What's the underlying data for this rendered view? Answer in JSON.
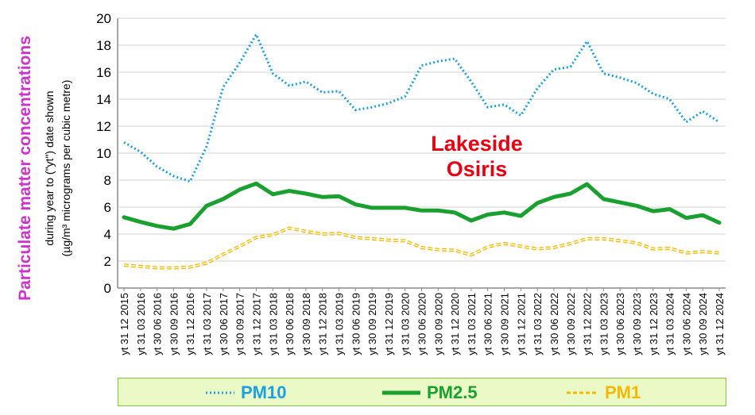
{
  "chart_data": {
    "type": "line",
    "ylabel": "Particulate matter concentrations",
    "ylabel_sub1": "during year to (\"yt\") date shown",
    "ylabel_sub2": "(µg/m³ micrograms per cubic metre)",
    "ylim": [
      0,
      20
    ],
    "yticks": [
      "0",
      "2",
      "4",
      "6",
      "8",
      "10",
      "12",
      "14",
      "16",
      "18",
      "20"
    ],
    "grid": true,
    "annotation_line1": "Lakeside",
    "annotation_line2": "Osiris",
    "categories": [
      "yt 31 12 2015",
      "yt 31 03 2016",
      "yt 30 06 2016",
      "yt 30 09 2016",
      "yt 31 12 2016",
      "yt 31 03 2017",
      "yt 30 06 2017",
      "yt 30 09 2017",
      "yt 31 12 2017",
      "yt 31 03 2018",
      "yt 30 06 2018",
      "yt 30 09 2018",
      "yt 31 12 2018",
      "yt 31 03 2019",
      "yt 30 06 2019",
      "yt 30 09 2019",
      "yt 31 12 2019",
      "yt 31 03 2020",
      "yt 30 06 2020",
      "yt 30 09 2020",
      "yt 31 12 2020",
      "yt 31 03 2021",
      "yt 30 06 2021",
      "yt 30 09 2021",
      "yt 31 12 2021",
      "yt 31 03 2022",
      "yt 30 06 2022",
      "yt 30 09 2022",
      "yt 31 12 2022",
      "yt 31 03 2023",
      "yt 30 06 2023",
      "yt 30 09 2023",
      "yt 31 12 2023",
      "yt 31 03 2024",
      "yt 30 06 2024",
      "yt 30 09 2024",
      "yt 31 12 2024"
    ],
    "series": [
      {
        "name": "PM10",
        "color": "#1ba1e2",
        "style": "dotted",
        "values": [
          10.8,
          10.1,
          9.0,
          8.3,
          7.9,
          10.5,
          14.9,
          16.7,
          18.8,
          15.9,
          15.0,
          15.3,
          14.5,
          14.6,
          13.2,
          13.4,
          13.7,
          14.2,
          16.5,
          16.8,
          17.0,
          15.3,
          13.4,
          13.6,
          12.8,
          14.8,
          16.2,
          16.4,
          18.3,
          15.9,
          15.6,
          15.2,
          14.4,
          14.0,
          12.3,
          13.1,
          12.3
        ]
      },
      {
        "name": "PM2.5",
        "color": "#19a02f",
        "style": "solid",
        "values": [
          5.25,
          4.9,
          4.6,
          4.4,
          4.75,
          6.1,
          6.6,
          7.3,
          7.75,
          6.95,
          7.2,
          7.0,
          6.75,
          6.8,
          6.2,
          5.95,
          5.95,
          5.95,
          5.75,
          5.75,
          5.6,
          5.0,
          5.45,
          5.6,
          5.35,
          6.3,
          6.75,
          7.0,
          7.7,
          6.6,
          6.35,
          6.1,
          5.7,
          5.85,
          5.2,
          5.4,
          4.85
        ]
      },
      {
        "name": "PM1",
        "color": "#f5b800",
        "style": "dashed",
        "values": [
          1.7,
          1.6,
          1.5,
          1.5,
          1.55,
          1.85,
          2.5,
          3.1,
          3.75,
          3.95,
          4.45,
          4.2,
          4.0,
          4.05,
          3.75,
          3.65,
          3.55,
          3.5,
          3.0,
          2.85,
          2.8,
          2.45,
          3.05,
          3.3,
          3.1,
          2.9,
          3.0,
          3.3,
          3.65,
          3.65,
          3.5,
          3.35,
          2.9,
          2.95,
          2.6,
          2.7,
          2.6
        ]
      }
    ]
  }
}
